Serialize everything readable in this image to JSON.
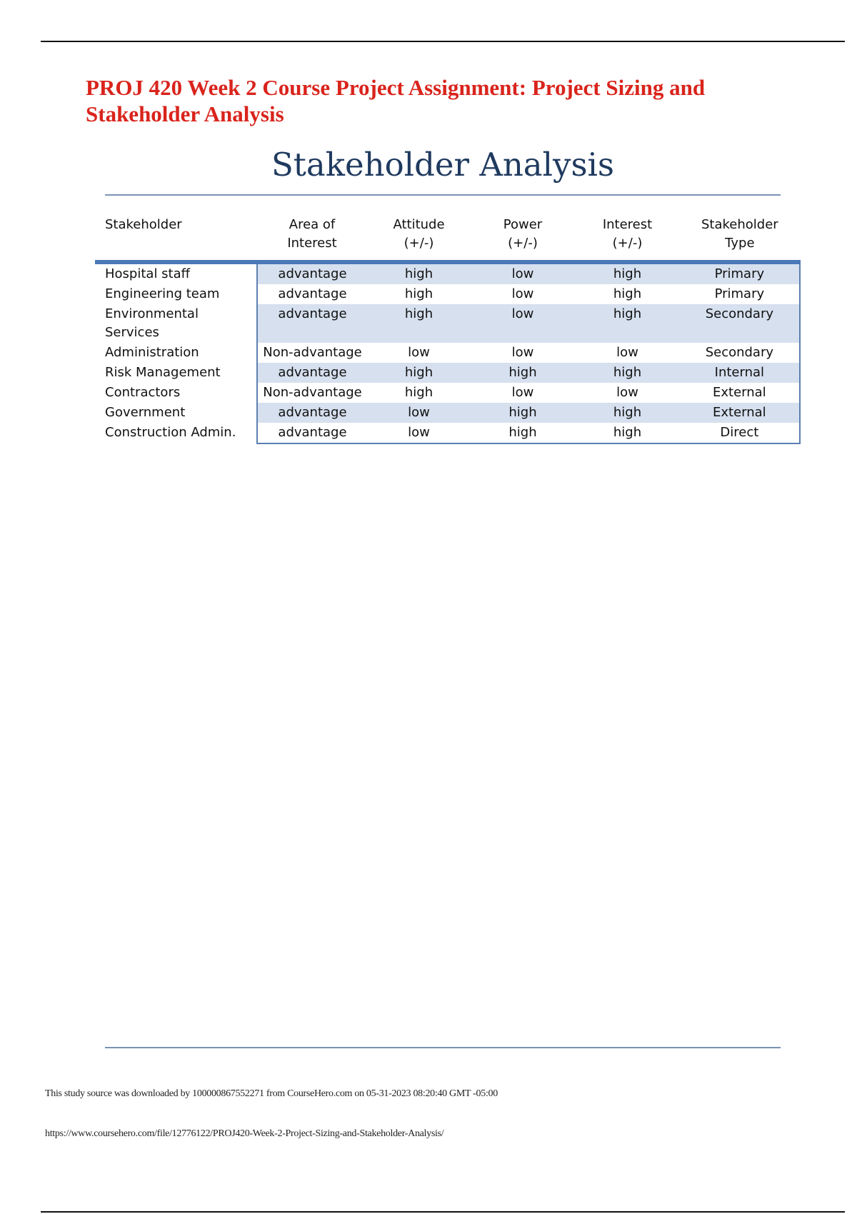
{
  "document": {
    "title": "PROJ 420 Week 2 Course Project Assignment: Project Sizing and Stakeholder Analysis",
    "heading": "Stakeholder Analysis"
  },
  "table": {
    "headers": [
      "Stakeholder",
      "Area of Interest",
      "Attitude (+/-)",
      "Power (+/-)",
      "Interest (+/-)",
      "Stakeholder Type"
    ],
    "rows": [
      [
        "Hospital staff",
        "advantage",
        "high",
        "low",
        "high",
        "Primary"
      ],
      [
        "Engineering team",
        "advantage",
        "high",
        "low",
        "high",
        "Primary"
      ],
      [
        "Environmental Services",
        "advantage",
        "high",
        "low",
        "high",
        "Secondary"
      ],
      [
        "Administration",
        "Non-advantage",
        "low",
        "low",
        "low",
        "Secondary"
      ],
      [
        "Risk Management",
        "advantage",
        "high",
        "high",
        "high",
        "Internal"
      ],
      [
        "Contractors",
        "Non-advantage",
        "high",
        "low",
        "low",
        "External"
      ],
      [
        "Government",
        "advantage",
        "low",
        "high",
        "high",
        "External"
      ],
      [
        "Construction Admin.",
        "advantage",
        "low",
        "high",
        "high",
        "Direct"
      ]
    ]
  },
  "footer": {
    "download_note": "This study source was downloaded by 100000867552271 from CourseHero.com on 05-31-2023 08:20:40 GMT -05:00",
    "url": "https://www.coursehero.com/file/12776122/PROJ420-Week-2-Project-Sizing-and-Stakeholder-Analysis/"
  },
  "colors": {
    "title": "#d9241c",
    "heading": "#1f3a5f",
    "row_shade": "#d6e0ef",
    "table_accent": "#4a78b8"
  }
}
